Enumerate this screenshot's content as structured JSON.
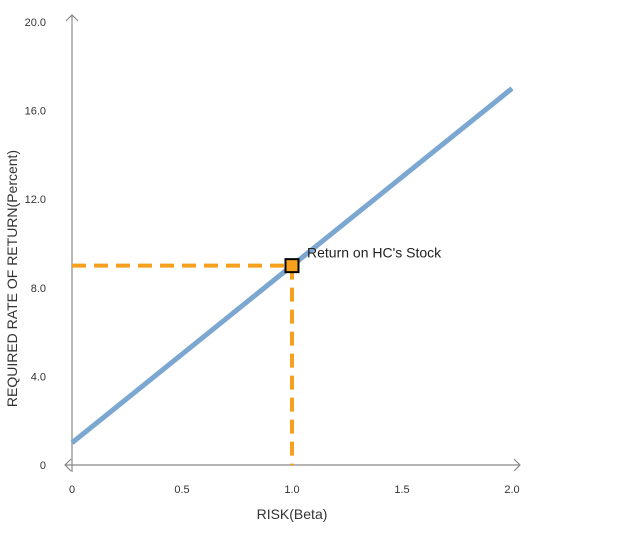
{
  "chart_data": {
    "type": "line",
    "xlabel": "RISK(Beta)",
    "ylabel": "REQUIRED RATE OF RETURN(Percent)",
    "xlim": [
      0,
      2.0
    ],
    "ylim": [
      0,
      20.0
    ],
    "x_ticks": [
      {
        "value": 0,
        "label": "0"
      },
      {
        "value": 0.5,
        "label": "0.5"
      },
      {
        "value": 1.0,
        "label": "1.0"
      },
      {
        "value": 1.5,
        "label": "1.5"
      },
      {
        "value": 2.0,
        "label": "2.0"
      }
    ],
    "y_ticks": [
      {
        "value": 0,
        "label": "0"
      },
      {
        "value": 4,
        "label": "4.0"
      },
      {
        "value": 8,
        "label": "8.0"
      },
      {
        "value": 12,
        "label": "12.0"
      },
      {
        "value": 16,
        "label": "16.0"
      },
      {
        "value": 20,
        "label": "20.0"
      }
    ],
    "grid": false,
    "series": [
      {
        "color": "#7ba7d1",
        "points": [
          {
            "x": 0,
            "y": 1.0
          },
          {
            "x": 2.0,
            "y": 17.0
          }
        ]
      }
    ],
    "highlight_point": {
      "x": 1.0,
      "y": 9.0,
      "label": "Return on HC's Stock",
      "color": "#f7a01e",
      "guide_line_color": "#f7a01e"
    },
    "axis_color": "#888888"
  }
}
